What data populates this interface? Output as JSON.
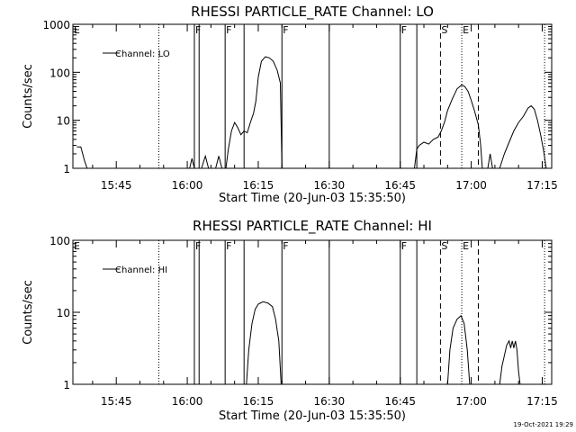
{
  "chart_data": [
    {
      "type": "line",
      "title": "RHESSI PARTICLE_RATE Channel: LO",
      "xlabel": "Start Time (20-Jun-03 15:35:50)",
      "ylabel": "Counts/sec",
      "yscale": "log",
      "ylim": [
        1,
        1000
      ],
      "xlim": [
        "15:35:50",
        "17:17:00"
      ],
      "x_ticks": [
        "15:45",
        "16:00",
        "16:15",
        "16:30",
        "16:45",
        "17:00",
        "17:15"
      ],
      "y_ticks": [
        "1",
        "10",
        "100",
        "1000"
      ],
      "legend": {
        "placement": "top-left",
        "entries": [
          "Channel: LO"
        ]
      },
      "grid": false,
      "markers": [
        {
          "time": "15:35:50",
          "label": "E",
          "style": "dotted"
        },
        {
          "time": "15:54:00",
          "label": "",
          "style": "dotted"
        },
        {
          "time": "16:01:30",
          "label": "F",
          "style": "solid"
        },
        {
          "time": "16:02:30",
          "label": "",
          "style": "solid"
        },
        {
          "time": "16:08:00",
          "label": "F",
          "style": "solid"
        },
        {
          "time": "16:12:00",
          "label": "",
          "style": "solid"
        },
        {
          "time": "16:20:00",
          "label": "F",
          "style": "solid"
        },
        {
          "time": "16:30:00",
          "label": "",
          "style": "solid"
        },
        {
          "time": "16:45:00",
          "label": "F",
          "style": "solid"
        },
        {
          "time": "16:48:30",
          "label": "",
          "style": "solid"
        },
        {
          "time": "16:53:30",
          "label": "S",
          "style": "dashed"
        },
        {
          "time": "16:58:00",
          "label": "E",
          "style": "dotted"
        },
        {
          "time": "17:01:30",
          "label": "",
          "style": "dashed"
        },
        {
          "time": "17:15:30",
          "label": "",
          "style": "dotted"
        }
      ],
      "series": [
        {
          "segments": [
            [
              [
                "15:36:40",
                2.8
              ],
              [
                "15:37:30",
                2.8
              ],
              [
                "15:38:20",
                1.4
              ],
              [
                "15:38:50",
                1
              ]
            ],
            [
              [
                "16:00:30",
                1
              ],
              [
                "16:01:00",
                1.6
              ],
              [
                "16:01:30",
                1
              ]
            ],
            [
              [
                "16:03:00",
                1
              ],
              [
                "16:03:50",
                1.8
              ],
              [
                "16:04:30",
                1
              ]
            ],
            [
              [
                "16:06:00",
                1
              ],
              [
                "16:06:40",
                1.8
              ],
              [
                "16:07:20",
                1
              ]
            ],
            [
              [
                "16:08:10",
                1
              ],
              [
                "16:08:40",
                2.5
              ],
              [
                "16:09:20",
                6
              ],
              [
                "16:10:00",
                9
              ],
              [
                "16:10:40",
                7
              ],
              [
                "16:11:20",
                5
              ],
              [
                "16:12:00",
                6
              ],
              [
                "16:12:40",
                5.5
              ],
              [
                "16:13:20",
                9
              ],
              [
                "16:14:00",
                14
              ],
              [
                "16:14:30",
                25
              ],
              [
                "16:15:00",
                80
              ],
              [
                "16:15:40",
                170
              ],
              [
                "16:16:30",
                210
              ],
              [
                "16:17:20",
                200
              ],
              [
                "16:18:10",
                170
              ],
              [
                "16:19:00",
                110
              ],
              [
                "16:19:40",
                60
              ],
              [
                "16:20:00",
                1
              ]
            ],
            [
              [
                "16:48:00",
                1
              ],
              [
                "16:48:30",
                2.5
              ],
              [
                "16:49:00",
                3
              ],
              [
                "16:50:00",
                3.5
              ],
              [
                "16:51:00",
                3.2
              ],
              [
                "16:52:00",
                4
              ],
              [
                "16:53:00",
                4.5
              ],
              [
                "16:53:40",
                6
              ],
              [
                "16:54:20",
                9
              ],
              [
                "16:55:00",
                16
              ],
              [
                "16:56:00",
                28
              ],
              [
                "16:57:00",
                45
              ],
              [
                "16:58:00",
                55
              ],
              [
                "16:58:40",
                50
              ],
              [
                "16:59:20",
                40
              ],
              [
                "17:00:00",
                26
              ],
              [
                "17:00:40",
                16
              ],
              [
                "17:01:30",
                8
              ],
              [
                "17:02:00",
                3
              ],
              [
                "17:02:20",
                1
              ]
            ],
            [
              [
                "17:03:30",
                1
              ],
              [
                "17:04:00",
                2
              ],
              [
                "17:04:30",
                1
              ]
            ],
            [
              [
                "17:06:00",
                1
              ],
              [
                "17:07:00",
                2
              ],
              [
                "17:08:00",
                3.5
              ],
              [
                "17:09:00",
                6
              ],
              [
                "17:10:00",
                9
              ],
              [
                "17:11:00",
                12
              ],
              [
                "17:12:00",
                18
              ],
              [
                "17:12:40",
                20
              ],
              [
                "17:13:20",
                17
              ],
              [
                "17:14:00",
                10
              ],
              [
                "17:14:40",
                5
              ],
              [
                "17:15:20",
                2.2
              ],
              [
                "17:15:50",
                1
              ]
            ]
          ]
        }
      ]
    },
    {
      "type": "line",
      "title": "RHESSI PARTICLE_RATE Channel: HI",
      "xlabel": "Start Time (20-Jun-03 15:35:50)",
      "ylabel": "Counts/sec",
      "yscale": "log",
      "ylim": [
        1,
        100
      ],
      "xlim": [
        "15:35:50",
        "17:17:00"
      ],
      "x_ticks": [
        "15:45",
        "16:00",
        "16:15",
        "16:30",
        "16:45",
        "17:00",
        "17:15"
      ],
      "y_ticks": [
        "1",
        "10",
        "100"
      ],
      "legend": {
        "placement": "top-left",
        "entries": [
          "Channel: HI"
        ]
      },
      "grid": false,
      "markers": [
        {
          "time": "15:35:50",
          "label": "E",
          "style": "dotted"
        },
        {
          "time": "15:54:00",
          "label": "",
          "style": "dotted"
        },
        {
          "time": "16:01:30",
          "label": "F",
          "style": "solid"
        },
        {
          "time": "16:02:30",
          "label": "",
          "style": "solid"
        },
        {
          "time": "16:08:00",
          "label": "F",
          "style": "solid"
        },
        {
          "time": "16:12:00",
          "label": "",
          "style": "solid"
        },
        {
          "time": "16:20:00",
          "label": "F",
          "style": "solid"
        },
        {
          "time": "16:30:00",
          "label": "",
          "style": "solid"
        },
        {
          "time": "16:45:00",
          "label": "F",
          "style": "solid"
        },
        {
          "time": "16:48:30",
          "label": "",
          "style": "solid"
        },
        {
          "time": "16:53:30",
          "label": "S",
          "style": "dashed"
        },
        {
          "time": "16:58:00",
          "label": "E",
          "style": "dotted"
        },
        {
          "time": "17:01:30",
          "label": "",
          "style": "dashed"
        },
        {
          "time": "17:15:30",
          "label": "",
          "style": "dotted"
        }
      ],
      "series": [
        {
          "segments": [
            [
              [
                "16:12:30",
                1
              ],
              [
                "16:13:00",
                3
              ],
              [
                "16:13:40",
                7
              ],
              [
                "16:14:20",
                11
              ],
              [
                "16:15:00",
                13
              ],
              [
                "16:16:00",
                14
              ],
              [
                "16:17:00",
                13.5
              ],
              [
                "16:18:00",
                12
              ],
              [
                "16:18:40",
                8
              ],
              [
                "16:19:20",
                4
              ],
              [
                "16:19:50",
                1
              ]
            ],
            [
              [
                "16:55:00",
                1
              ],
              [
                "16:55:30",
                3
              ],
              [
                "16:56:10",
                6
              ],
              [
                "16:57:00",
                8
              ],
              [
                "16:57:50",
                9
              ],
              [
                "16:58:30",
                7
              ],
              [
                "16:59:10",
                3
              ],
              [
                "16:59:40",
                1
              ]
            ],
            [
              [
                "17:06:00",
                1
              ],
              [
                "17:06:30",
                1.8
              ],
              [
                "17:07:00",
                2.5
              ],
              [
                "17:07:30",
                3.5
              ],
              [
                "17:08:00",
                4
              ],
              [
                "17:08:20",
                3.2
              ],
              [
                "17:08:40",
                4
              ],
              [
                "17:09:00",
                3.2
              ],
              [
                "17:09:20",
                4
              ],
              [
                "17:09:40",
                3
              ],
              [
                "17:10:00",
                1.5
              ],
              [
                "17:10:20",
                1
              ]
            ]
          ]
        }
      ]
    }
  ],
  "footer": {
    "timestamp": "19-Oct-2021 19:29"
  }
}
